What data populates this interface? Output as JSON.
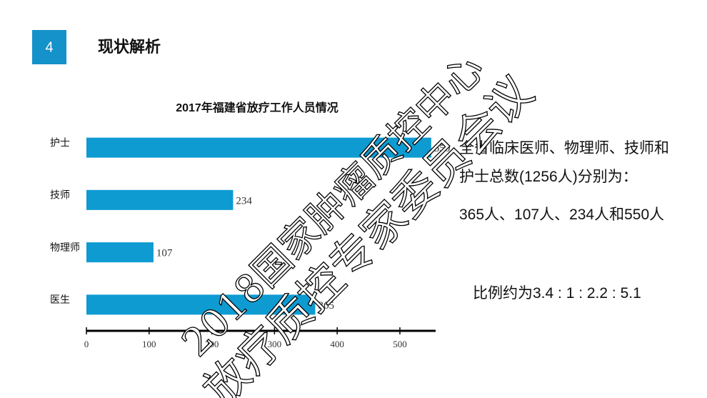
{
  "header": {
    "number": "4",
    "title": "现状解析"
  },
  "chart_data": {
    "type": "barh",
    "title": "2017年福建省放疗工作人员情况",
    "categories": [
      "护士",
      "技师",
      "物理师",
      "医生"
    ],
    "values": [
      550,
      234,
      107,
      365
    ],
    "color": "#0e9bd2",
    "xlim": [
      0,
      557
    ],
    "xticks": [
      0,
      100,
      200,
      300,
      400,
      500
    ]
  },
  "paragraphs": [
    "全省临床医师、物理师、技师和护士总数(1256人)分别为：",
    "365人、107人、234人和550人",
    "比例约为3.4 : 1 : 2.2 : 5.1"
  ],
  "watermark": [
    "2018国家肿瘤质控中心",
    "放疗质控专家委员会议"
  ]
}
